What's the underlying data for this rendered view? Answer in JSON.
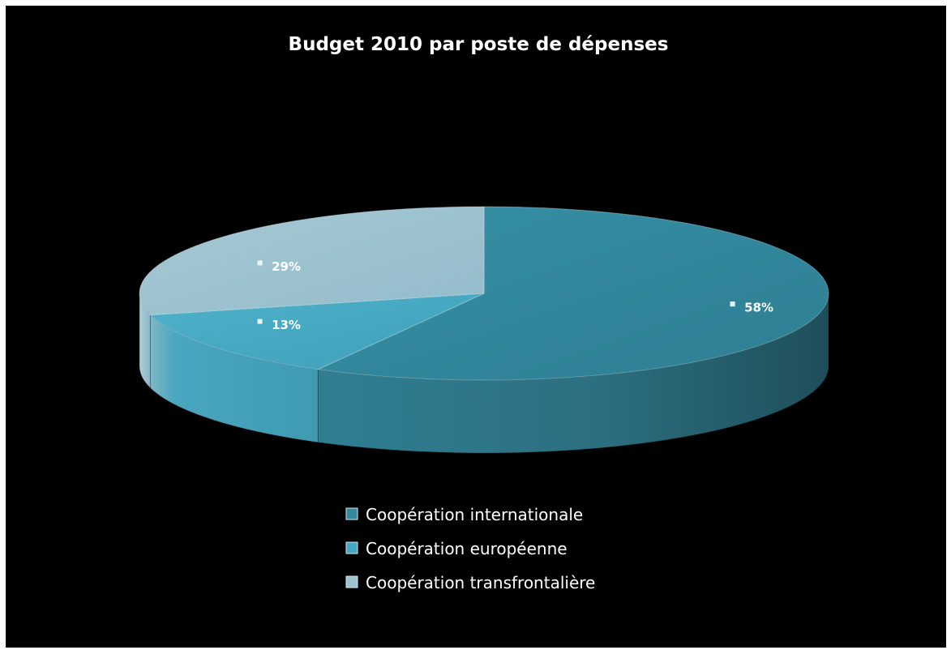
{
  "chart_data": {
    "type": "pie",
    "title": "Budget 2010 par poste de dépenses",
    "categories": [
      "Coopération internationale",
      "Coopération européenne",
      "Coopération transfrontalière"
    ],
    "values": [
      58,
      13,
      29
    ],
    "labels": [
      "58%",
      "13%",
      "29%"
    ],
    "unit": "%",
    "three_d": true,
    "legend_position": "bottom",
    "colors": [
      "#34899e",
      "#45a7c1",
      "#9ec3cf"
    ],
    "background": "#000000"
  }
}
